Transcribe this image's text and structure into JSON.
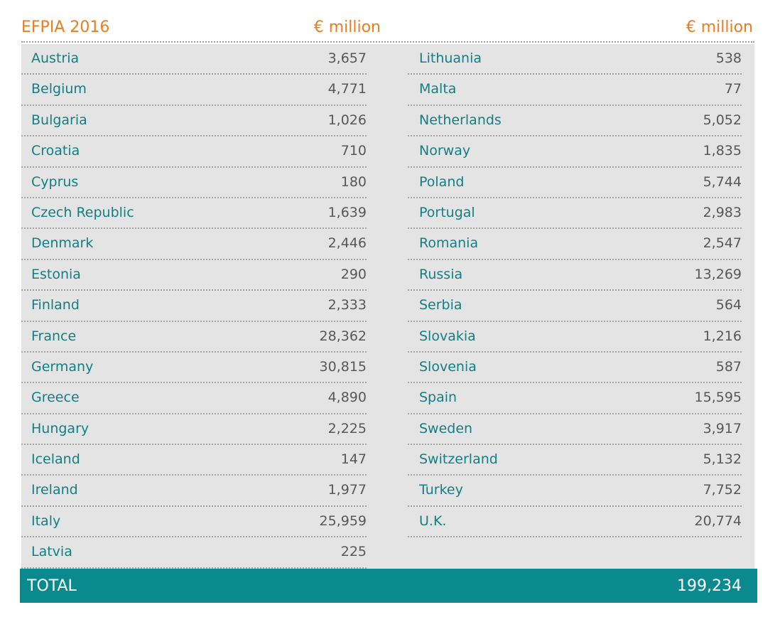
{
  "header": {
    "title": "EFPIA 2016",
    "unit_left": "€ million",
    "unit_right": "€ million"
  },
  "left_column": [
    {
      "country": "Austria",
      "value": "3,657"
    },
    {
      "country": "Belgium",
      "value": "4,771"
    },
    {
      "country": "Bulgaria",
      "value": "1,026"
    },
    {
      "country": "Croatia",
      "value": "710"
    },
    {
      "country": "Cyprus",
      "value": "180"
    },
    {
      "country": "Czech Republic",
      "value": "1,639"
    },
    {
      "country": "Denmark",
      "value": "2,446"
    },
    {
      "country": "Estonia",
      "value": "290"
    },
    {
      "country": "Finland",
      "value": "2,333"
    },
    {
      "country": "France",
      "value": "28,362"
    },
    {
      "country": "Germany",
      "value": "30,815"
    },
    {
      "country": "Greece",
      "value": "4,890"
    },
    {
      "country": "Hungary",
      "value": "2,225"
    },
    {
      "country": "Iceland",
      "value": "147"
    },
    {
      "country": "Ireland",
      "value": "1,977"
    },
    {
      "country": "Italy",
      "value": "25,959"
    },
    {
      "country": "Latvia",
      "value": "225"
    }
  ],
  "right_column": [
    {
      "country": "Lithuania",
      "value": "538"
    },
    {
      "country": "Malta",
      "value": "77"
    },
    {
      "country": "Netherlands",
      "value": "5,052"
    },
    {
      "country": "Norway",
      "value": "1,835"
    },
    {
      "country": "Poland",
      "value": "5,744"
    },
    {
      "country": "Portugal",
      "value": "2,983"
    },
    {
      "country": "Romania",
      "value": "2,547"
    },
    {
      "country": "Russia",
      "value": "13,269"
    },
    {
      "country": "Serbia",
      "value": "564"
    },
    {
      "country": "Slovakia",
      "value": "1,216"
    },
    {
      "country": "Slovenia",
      "value": "587"
    },
    {
      "country": "Spain",
      "value": "15,595"
    },
    {
      "country": "Sweden",
      "value": "3,917"
    },
    {
      "country": "Switzerland",
      "value": "5,132"
    },
    {
      "country": "Turkey",
      "value": "7,752"
    },
    {
      "country": "U.K.",
      "value": "20,774"
    }
  ],
  "total": {
    "label": "TOTAL",
    "value": "199,234"
  },
  "colors": {
    "accent_orange": "#e67e22",
    "teal_text": "#137f85",
    "total_bar": "#0a8a8f",
    "panel_bg": "#e4e4e4",
    "value_text": "#585858"
  }
}
